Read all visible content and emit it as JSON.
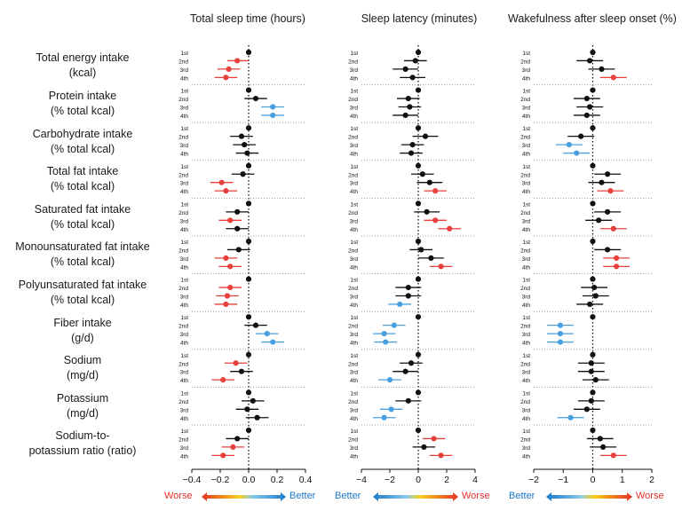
{
  "panels": [
    {
      "title": "Total sleep time (hours)"
    },
    {
      "title": "Sleep latency (minutes)"
    },
    {
      "title": "Wakefulness after sleep onset (%)"
    }
  ],
  "legend": {
    "left_panel": {
      "left": "Worse",
      "right": "Better"
    },
    "mid_panel": {
      "left": "Better",
      "right": "Worse"
    },
    "right_panel": {
      "left": "Better",
      "right": "Worse"
    }
  },
  "colors": {
    "worse": "#e8413c",
    "better": "#4a9fe0",
    "null": "#111111"
  },
  "chart_data": {
    "type": "forest",
    "quartiles": [
      "1st",
      "2nd",
      "3rd",
      "4th"
    ],
    "rows": [
      {
        "label_line1": "Total energy intake",
        "label_line2": "(kcal)"
      },
      {
        "label_line1": "Protein intake",
        "label_line2": "(% total kcal)"
      },
      {
        "label_line1": "Carbohydrate intake",
        "label_line2": "(% total kcal)"
      },
      {
        "label_line1": "Total fat intake",
        "label_line2": "(% total kcal)"
      },
      {
        "label_line1": "Saturated fat intake",
        "label_line2": "(% total kcal)"
      },
      {
        "label_line1": "Monounsaturated fat intake",
        "label_line2": "(% total kcal)"
      },
      {
        "label_line1": "Polyunsaturated fat intake",
        "label_line2": "(% total kcal)"
      },
      {
        "label_line1": "Fiber intake",
        "label_line2": "(g/d)"
      },
      {
        "label_line1": "Sodium",
        "label_line2": "(mg/d)"
      },
      {
        "label_line1": "Potassium",
        "label_line2": "(mg/d)"
      },
      {
        "label_line1": "Sodium-to-",
        "label_line2": "potassium ratio (ratio)"
      }
    ],
    "panels": [
      {
        "title": "Total sleep time (hours)",
        "xlim": [
          -0.4,
          0.4
        ],
        "ticks": [
          -0.4,
          -0.2,
          0.0,
          0.2,
          0.4
        ],
        "tick_labels": [
          "−0.4",
          "−0.2",
          "0.0",
          "0.2",
          "0.4"
        ],
        "data": [
          [
            [
              0,
              0,
              0,
              "n"
            ],
            [
              -0.08,
              -0.15,
              0,
              "w"
            ],
            [
              -0.14,
              -0.22,
              -0.06,
              "w"
            ],
            [
              -0.16,
              -0.24,
              -0.08,
              "w"
            ]
          ],
          [
            [
              0,
              0,
              0,
              "n"
            ],
            [
              0.05,
              -0.03,
              0.13,
              "n"
            ],
            [
              0.17,
              0.09,
              0.25,
              "b"
            ],
            [
              0.17,
              0.09,
              0.25,
              "b"
            ]
          ],
          [
            [
              0,
              0,
              0,
              "n"
            ],
            [
              -0.05,
              -0.13,
              0.03,
              "n"
            ],
            [
              -0.03,
              -0.11,
              0.05,
              "n"
            ],
            [
              -0.01,
              -0.09,
              0.07,
              "n"
            ]
          ],
          [
            [
              0,
              0,
              0,
              "n"
            ],
            [
              -0.04,
              -0.12,
              0.04,
              "n"
            ],
            [
              -0.19,
              -0.27,
              -0.11,
              "w"
            ],
            [
              -0.16,
              -0.24,
              -0.08,
              "w"
            ]
          ],
          [
            [
              0,
              0,
              0,
              "n"
            ],
            [
              -0.08,
              -0.16,
              0,
              "n"
            ],
            [
              -0.13,
              -0.21,
              -0.05,
              "w"
            ],
            [
              -0.08,
              -0.16,
              0,
              "n"
            ]
          ],
          [
            [
              0,
              0,
              0,
              "n"
            ],
            [
              -0.07,
              -0.15,
              0.01,
              "n"
            ],
            [
              -0.16,
              -0.24,
              -0.08,
              "w"
            ],
            [
              -0.13,
              -0.21,
              -0.05,
              "w"
            ]
          ],
          [
            [
              0,
              0,
              0,
              "n"
            ],
            [
              -0.13,
              -0.21,
              -0.05,
              "w"
            ],
            [
              -0.15,
              -0.23,
              -0.07,
              "w"
            ],
            [
              -0.16,
              -0.24,
              -0.08,
              "w"
            ]
          ],
          [
            [
              0,
              0,
              0,
              "n"
            ],
            [
              0.05,
              -0.03,
              0.13,
              "n"
            ],
            [
              0.13,
              0.05,
              0.21,
              "b"
            ],
            [
              0.17,
              0.09,
              0.25,
              "b"
            ]
          ],
          [
            [
              0,
              0,
              0,
              "n"
            ],
            [
              -0.09,
              -0.17,
              -0.01,
              "w"
            ],
            [
              -0.05,
              -0.13,
              0.03,
              "n"
            ],
            [
              -0.18,
              -0.26,
              -0.1,
              "w"
            ]
          ],
          [
            [
              0,
              0,
              0,
              "n"
            ],
            [
              0.03,
              -0.05,
              0.11,
              "n"
            ],
            [
              -0.01,
              -0.09,
              0.07,
              "n"
            ],
            [
              0.06,
              -0.02,
              0.14,
              "n"
            ]
          ],
          [
            [
              0,
              0,
              0,
              "n"
            ],
            [
              -0.08,
              -0.16,
              0,
              "n"
            ],
            [
              -0.11,
              -0.19,
              -0.03,
              "w"
            ],
            [
              -0.18,
              -0.26,
              -0.1,
              "w"
            ]
          ]
        ]
      },
      {
        "title": "Sleep latency (minutes)",
        "xlim": [
          -4,
          4
        ],
        "ticks": [
          -4,
          -2,
          0,
          2,
          4
        ],
        "tick_labels": [
          "−4",
          "−2",
          "0",
          "2",
          "4"
        ],
        "data": [
          [
            [
              0,
              0,
              0,
              "n"
            ],
            [
              -0.2,
              -1.0,
              0.6,
              "n"
            ],
            [
              -0.9,
              -1.8,
              0,
              "n"
            ],
            [
              -0.4,
              -1.3,
              0.5,
              "n"
            ]
          ],
          [
            [
              0,
              0,
              0,
              "n"
            ],
            [
              -0.7,
              -1.5,
              0.1,
              "n"
            ],
            [
              -0.6,
              -1.4,
              0.2,
              "n"
            ],
            [
              -0.9,
              -1.8,
              0,
              "n"
            ]
          ],
          [
            [
              0,
              0,
              0,
              "n"
            ],
            [
              0.5,
              -0.4,
              1.4,
              "n"
            ],
            [
              -0.4,
              -1.2,
              0.4,
              "n"
            ],
            [
              -0.5,
              -1.3,
              0.3,
              "n"
            ]
          ],
          [
            [
              0,
              0,
              0,
              "n"
            ],
            [
              0.3,
              -0.5,
              1.1,
              "n"
            ],
            [
              0.8,
              -0.1,
              1.7,
              "n"
            ],
            [
              1.2,
              0.4,
              2.0,
              "w"
            ]
          ],
          [
            [
              0,
              0,
              0,
              "n"
            ],
            [
              0.6,
              -0.3,
              1.5,
              "n"
            ],
            [
              1.2,
              0.4,
              2.0,
              "w"
            ],
            [
              2.2,
              1.4,
              3.0,
              "w"
            ]
          ],
          [
            [
              0,
              0,
              0,
              "n"
            ],
            [
              0.2,
              -0.6,
              1.0,
              "n"
            ],
            [
              0.9,
              0,
              1.8,
              "n"
            ],
            [
              1.6,
              0.8,
              2.4,
              "w"
            ]
          ],
          [
            [
              0,
              0,
              0,
              "n"
            ],
            [
              -0.7,
              -1.6,
              0.2,
              "n"
            ],
            [
              -0.7,
              -1.6,
              0.2,
              "n"
            ],
            [
              -1.3,
              -2.1,
              -0.5,
              "b"
            ]
          ],
          [
            [
              0,
              0,
              0,
              "n"
            ],
            [
              -1.7,
              -2.5,
              -0.9,
              "b"
            ],
            [
              -2.4,
              -3.2,
              -1.6,
              "b"
            ],
            [
              -2.3,
              -3.1,
              -1.5,
              "b"
            ]
          ],
          [
            [
              0,
              0,
              0,
              "n"
            ],
            [
              -0.5,
              -1.3,
              0.3,
              "n"
            ],
            [
              -0.9,
              -1.8,
              0,
              "n"
            ],
            [
              -2.0,
              -2.8,
              -1.2,
              "b"
            ]
          ],
          [
            [
              0,
              0,
              0,
              "n"
            ],
            [
              -0.7,
              -1.6,
              0.2,
              "n"
            ],
            [
              -1.9,
              -2.7,
              -1.1,
              "b"
            ],
            [
              -2.4,
              -3.2,
              -1.6,
              "b"
            ]
          ],
          [
            [
              0,
              0,
              0,
              "n"
            ],
            [
              1.1,
              0.3,
              1.9,
              "w"
            ],
            [
              0.4,
              -0.4,
              1.2,
              "n"
            ],
            [
              1.6,
              0.8,
              2.4,
              "w"
            ]
          ]
        ]
      },
      {
        "title": "Wakefulness after sleep onset (%)",
        "xlim": [
          -2,
          2
        ],
        "ticks": [
          -2,
          -1,
          0,
          1,
          2
        ],
        "tick_labels": [
          "−2",
          "−1",
          "0",
          "1",
          "2"
        ],
        "data": [
          [
            [
              0,
              0,
              0,
              "n"
            ],
            [
              -0.1,
              -0.55,
              0.35,
              "n"
            ],
            [
              0.3,
              -0.15,
              0.75,
              "n"
            ],
            [
              0.7,
              0.25,
              1.15,
              "w"
            ]
          ],
          [
            [
              0,
              0,
              0,
              "n"
            ],
            [
              -0.2,
              -0.65,
              0.25,
              "n"
            ],
            [
              -0.1,
              -0.55,
              0.35,
              "n"
            ],
            [
              -0.2,
              -0.65,
              0.25,
              "n"
            ]
          ],
          [
            [
              0,
              0,
              0,
              "n"
            ],
            [
              -0.4,
              -0.85,
              0.05,
              "n"
            ],
            [
              -0.8,
              -1.25,
              -0.35,
              "b"
            ],
            [
              -0.55,
              -1.0,
              -0.1,
              "b"
            ]
          ],
          [
            [
              0,
              0,
              0,
              "n"
            ],
            [
              0.5,
              0.05,
              0.95,
              "n"
            ],
            [
              0.3,
              -0.15,
              0.75,
              "n"
            ],
            [
              0.6,
              0.15,
              1.05,
              "w"
            ]
          ],
          [
            [
              0,
              0,
              0,
              "n"
            ],
            [
              0.5,
              0.05,
              0.95,
              "n"
            ],
            [
              0.2,
              -0.25,
              0.65,
              "n"
            ],
            [
              0.7,
              0.25,
              1.15,
              "w"
            ]
          ],
          [
            [
              0,
              0,
              0,
              "n"
            ],
            [
              0.5,
              0.05,
              0.95,
              "n"
            ],
            [
              0.8,
              0.35,
              1.25,
              "w"
            ],
            [
              0.8,
              0.35,
              1.25,
              "w"
            ]
          ],
          [
            [
              0,
              0,
              0,
              "n"
            ],
            [
              0.05,
              -0.4,
              0.5,
              "n"
            ],
            [
              0.1,
              -0.35,
              0.55,
              "n"
            ],
            [
              -0.1,
              -0.55,
              0.35,
              "n"
            ]
          ],
          [
            [
              0,
              0,
              0,
              "n"
            ],
            [
              -1.1,
              -1.55,
              -0.65,
              "b"
            ],
            [
              -1.1,
              -1.55,
              -0.65,
              "b"
            ],
            [
              -1.1,
              -1.55,
              -0.65,
              "b"
            ]
          ],
          [
            [
              0,
              0,
              0,
              "n"
            ],
            [
              -0.05,
              -0.5,
              0.4,
              "n"
            ],
            [
              -0.05,
              -0.5,
              0.4,
              "n"
            ],
            [
              0.1,
              -0.35,
              0.55,
              "n"
            ]
          ],
          [
            [
              0,
              0,
              0,
              "n"
            ],
            [
              -0.05,
              -0.5,
              0.4,
              "n"
            ],
            [
              -0.2,
              -0.65,
              0.25,
              "n"
            ],
            [
              -0.75,
              -1.2,
              -0.3,
              "b"
            ]
          ],
          [
            [
              0,
              0,
              0,
              "n"
            ],
            [
              0.25,
              -0.2,
              0.7,
              "n"
            ],
            [
              0.35,
              -0.1,
              0.8,
              "n"
            ],
            [
              0.7,
              0.25,
              1.15,
              "w"
            ]
          ]
        ]
      }
    ]
  }
}
